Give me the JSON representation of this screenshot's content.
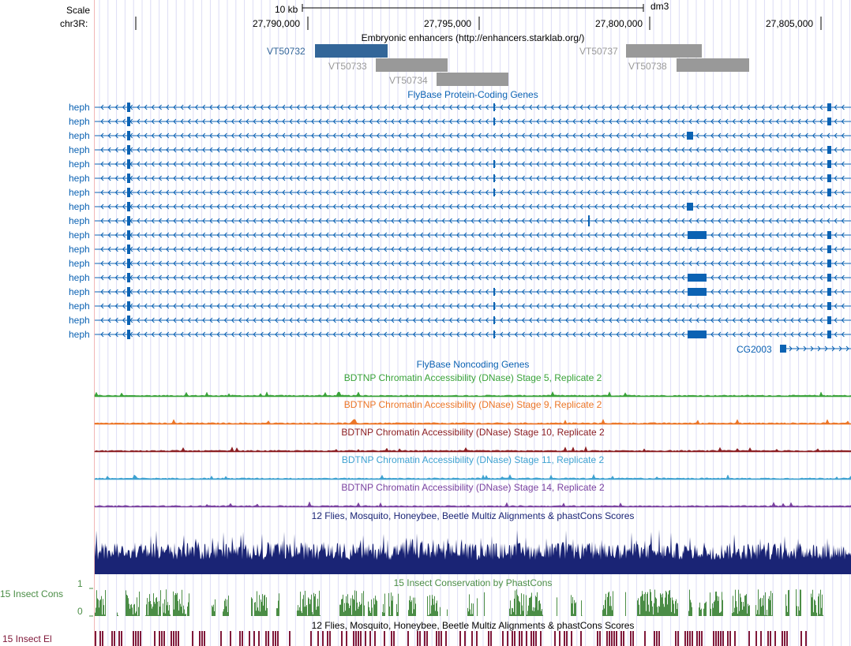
{
  "ruler": {
    "scale_label": "Scale",
    "chrom_label": "chr3R:",
    "scale_bar_label": "10 kb",
    "assembly": "dm3",
    "positions": [
      "27,790,000",
      "27,795,000",
      "27,800,000",
      "27,805,000"
    ]
  },
  "tracks": {
    "enhancers": {
      "title": "Embryonic enhancers (http://enhancers.starklab.org/)",
      "items": [
        {
          "name": "VT50732",
          "color": "#336699"
        },
        {
          "name": "VT50733",
          "color": "#999999"
        },
        {
          "name": "VT50734",
          "color": "#999999"
        },
        {
          "name": "VT50737",
          "color": "#999999"
        },
        {
          "name": "VT50738",
          "color": "#999999"
        }
      ]
    },
    "protein_coding": {
      "title": "FlyBase Protein-Coding Genes",
      "color": "#0b62b3",
      "transcripts": [
        "heph",
        "heph",
        "heph",
        "heph",
        "heph",
        "heph",
        "heph",
        "heph",
        "heph",
        "heph",
        "heph",
        "heph",
        "heph",
        "heph",
        "heph",
        "heph",
        "heph"
      ],
      "extra_gene": "CG2003"
    },
    "noncoding": {
      "title": "FlyBase Noncoding Genes",
      "color": "#0b62b3"
    },
    "dnase": [
      {
        "title": "BDTNP Chromatin Accessibility (DNase) Stage 5, Replicate 2",
        "color": "#3aa33a"
      },
      {
        "title": "BDTNP Chromatin Accessibility (DNase) Stage 9, Replicate 2",
        "color": "#ec7628"
      },
      {
        "title": "BDTNP Chromatin Accessibility (DNase) Stage 10, Replicate 2",
        "color": "#8c1f23"
      },
      {
        "title": "BDTNP Chromatin Accessibility (DNase) Stage 11, Replicate 2",
        "color": "#3fa2d1"
      },
      {
        "title": "BDTNP Chromatin Accessibility (DNase) Stage 14, Replicate 2",
        "color": "#7a42a0"
      }
    ],
    "multiz": {
      "title": "12 Flies, Mosquito, Honeybee, Beetle Multiz Alignments & phastCons Scores",
      "color": "#1a2475"
    },
    "cons": {
      "title": "15 Insect Conservation by PhastCons",
      "side_label": "15 Insect Cons",
      "axis_max": "1",
      "axis_min": "0",
      "color": "#4b8d46"
    },
    "elements": {
      "title": "12 Flies, Mosquito, Honeybee, Beetle Multiz Alignments & phastCons Scores",
      "side_label": "15 Insect El",
      "color": "#80193a"
    }
  }
}
